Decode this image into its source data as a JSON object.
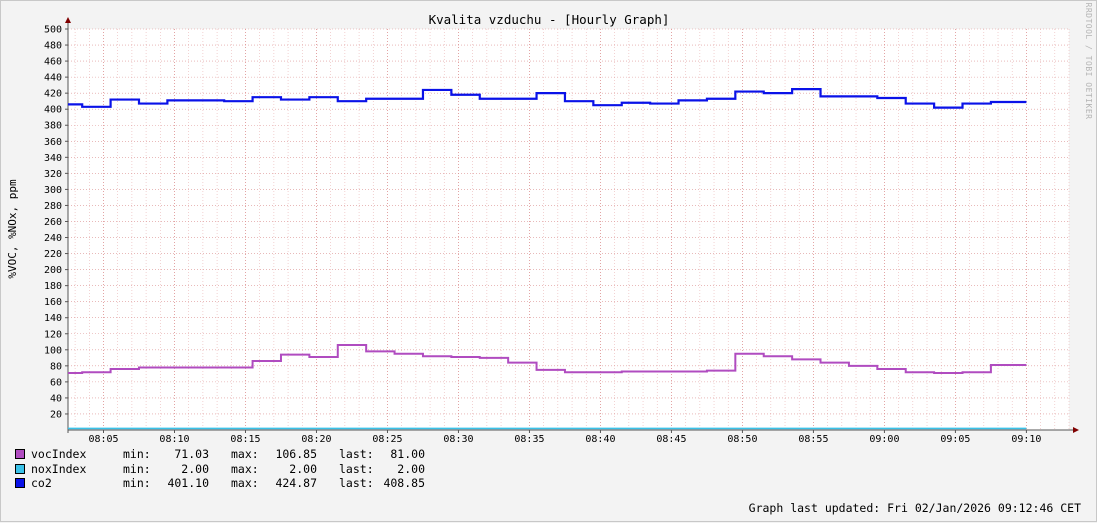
{
  "colors": {
    "vocIndex": "#b04cc0",
    "noxIndex": "#3ac2e8",
    "co2": "#0a12e8",
    "grid_minor": "#e9b4b4",
    "grid_major": "#dc9090",
    "arrow": "#7f0000"
  },
  "chart_data": {
    "type": "line",
    "line_style": "step",
    "title": "Kvalita vzduchu - [Hourly Graph]",
    "ylabel": "%VOC, %NOx, ppm",
    "watermark": "RRDTOOL / TOBI OETIKER",
    "ylim": [
      0,
      500
    ],
    "yticks": [
      "20",
      "40",
      "60",
      "80",
      "100",
      "120",
      "140",
      "160",
      "180",
      "200",
      "220",
      "240",
      "260",
      "280",
      "300",
      "320",
      "340",
      "360",
      "380",
      "400",
      "420",
      "440",
      "460",
      "480",
      "500"
    ],
    "xlim": [
      "08:02:30",
      "09:13:00"
    ],
    "xticks": [
      "08:05",
      "08:10",
      "08:15",
      "08:20",
      "08:25",
      "08:30",
      "08:35",
      "08:40",
      "08:45",
      "08:50",
      "08:55",
      "09:00",
      "09:05",
      "09:10"
    ],
    "grid": true,
    "series": [
      {
        "name": "co2",
        "x": [
          "08:02:30",
          "08:03:30",
          "08:05:30",
          "08:07:30",
          "08:09:30",
          "08:11:30",
          "08:13:30",
          "08:15:30",
          "08:17:30",
          "08:19:30",
          "08:21:30",
          "08:23:30",
          "08:25:30",
          "08:27:30",
          "08:29:30",
          "08:31:30",
          "08:33:30",
          "08:35:30",
          "08:37:30",
          "08:39:30",
          "08:41:30",
          "08:43:30",
          "08:45:30",
          "08:47:30",
          "08:49:30",
          "08:51:30",
          "08:53:30",
          "08:55:30",
          "08:57:30",
          "08:59:30",
          "09:01:30",
          "09:03:30",
          "09:05:30",
          "09:07:30",
          "09:09:30"
        ],
        "y": [
          406,
          403,
          412,
          407,
          411,
          411,
          410,
          415,
          412,
          415,
          410,
          413,
          413,
          424,
          418,
          413,
          413,
          420,
          410,
          405,
          408,
          407,
          411,
          413,
          422,
          420,
          425,
          416,
          416,
          414,
          407,
          402,
          407,
          409,
          409
        ]
      },
      {
        "name": "vocIndex",
        "x": [
          "08:02:30",
          "08:03:30",
          "08:05:30",
          "08:07:30",
          "08:09:30",
          "08:11:30",
          "08:13:30",
          "08:15:30",
          "08:17:30",
          "08:19:30",
          "08:21:30",
          "08:23:30",
          "08:25:30",
          "08:27:30",
          "08:29:30",
          "08:31:30",
          "08:33:30",
          "08:35:30",
          "08:37:30",
          "08:39:30",
          "08:41:30",
          "08:43:30",
          "08:45:30",
          "08:47:30",
          "08:49:30",
          "08:51:30",
          "08:53:30",
          "08:55:30",
          "08:57:30",
          "08:59:30",
          "09:01:30",
          "09:03:30",
          "09:05:30",
          "09:07:30",
          "09:09:30"
        ],
        "y": [
          71,
          72,
          76,
          78,
          78,
          78,
          78,
          86,
          94,
          91,
          106,
          98,
          95,
          92,
          91,
          90,
          84,
          75,
          72,
          72,
          73,
          73,
          73,
          74,
          95,
          92,
          88,
          84,
          80,
          76,
          72,
          71,
          72,
          81,
          81
        ]
      },
      {
        "name": "noxIndex",
        "x": [
          "08:02:30",
          "09:09:30"
        ],
        "y": [
          2,
          2
        ]
      }
    ]
  },
  "legend": [
    {
      "name": "vocIndex",
      "color": "#b04cc0",
      "min_label": "min:",
      "min": "71.03",
      "max_label": "max:",
      "max": "106.85",
      "last_label": "last:",
      "last": "81.00"
    },
    {
      "name": "noxIndex",
      "color": "#3ac2e8",
      "min_label": "min:",
      "min": "2.00",
      "max_label": "max:",
      "max": "2.00",
      "last_label": "last:",
      "last": "2.00"
    },
    {
      "name": "co2",
      "color": "#0a12e8",
      "min_label": "min:",
      "min": "401.10",
      "max_label": "max:",
      "max": "424.87",
      "last_label": "last:",
      "last": "408.85"
    }
  ],
  "footer": {
    "updated": "Graph last updated: Fri 02/Jan/2026 09:12:46 CET"
  }
}
